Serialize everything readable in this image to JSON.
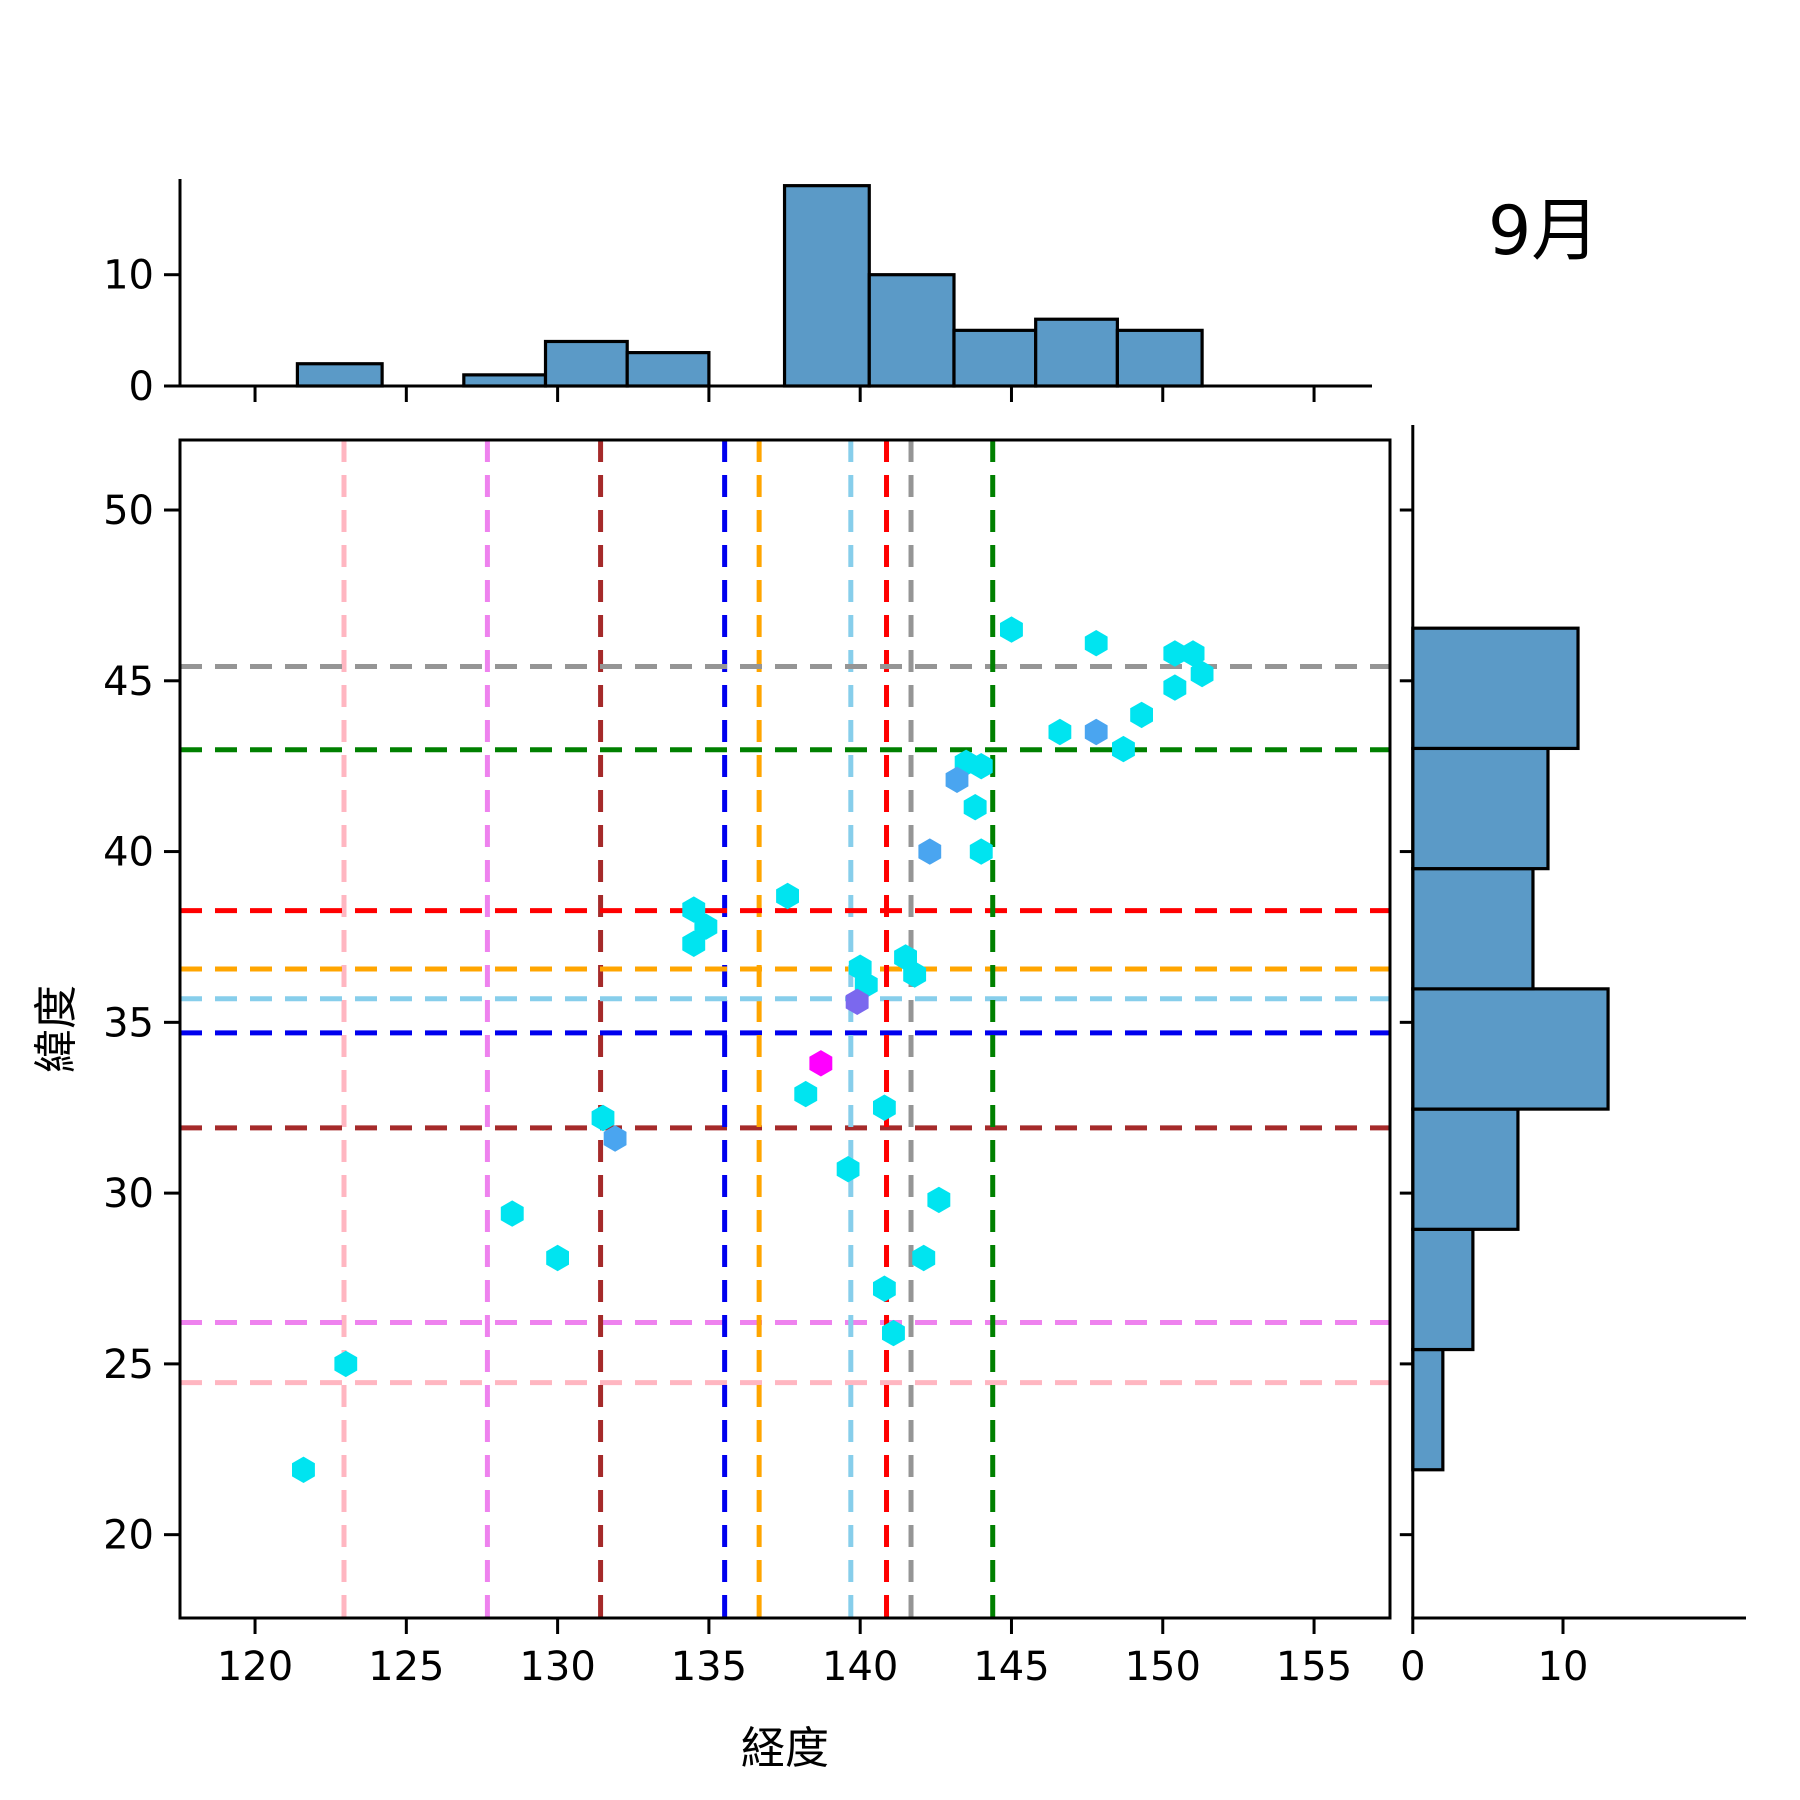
{
  "title": "9月",
  "axes": {
    "xlabel": "経度",
    "ylabel": "緯度",
    "x_ticks": [
      120,
      125,
      130,
      135,
      140,
      145,
      150,
      155
    ],
    "y_ticks": [
      20,
      25,
      30,
      35,
      40,
      45,
      50
    ],
    "xlim": [
      117.52,
      157.51
    ],
    "ylim": [
      17.56,
      52.05
    ],
    "marginal_count_ticks": [
      0,
      10
    ]
  },
  "chart_data": {
    "type": "scatter",
    "title": "9月",
    "xlabel": "経度",
    "ylabel": "緯度",
    "legend": "none",
    "grid": false,
    "series": [
      {
        "name": "cyan-points",
        "marker": "hexagon",
        "color": "#00E4F0",
        "points": [
          [
            121.6,
            21.9
          ],
          [
            123.0,
            25.0
          ],
          [
            128.5,
            29.4
          ],
          [
            130.0,
            28.1
          ],
          [
            131.5,
            32.2
          ],
          [
            134.5,
            38.3
          ],
          [
            134.9,
            37.8
          ],
          [
            134.5,
            37.3
          ],
          [
            137.6,
            38.7
          ],
          [
            138.2,
            32.9
          ],
          [
            139.6,
            30.7
          ],
          [
            140.0,
            36.6
          ],
          [
            140.2,
            36.1
          ],
          [
            140.8,
            32.5
          ],
          [
            140.8,
            27.2
          ],
          [
            141.1,
            25.9
          ],
          [
            141.5,
            36.9
          ],
          [
            141.8,
            36.4
          ],
          [
            142.1,
            28.1
          ],
          [
            142.6,
            29.8
          ],
          [
            143.5,
            42.6
          ],
          [
            144.0,
            42.5
          ],
          [
            143.8,
            41.3
          ],
          [
            144.0,
            40.0
          ],
          [
            145.0,
            46.5
          ],
          [
            146.6,
            43.5
          ],
          [
            147.8,
            46.1
          ],
          [
            148.7,
            43.0
          ],
          [
            149.3,
            44.0
          ],
          [
            150.4,
            45.8
          ],
          [
            151.0,
            45.8
          ],
          [
            150.4,
            44.8
          ],
          [
            151.3,
            45.2
          ]
        ]
      },
      {
        "name": "blue-points",
        "marker": "hexagon",
        "color": "#4AA5F0",
        "points": [
          [
            131.9,
            31.6
          ],
          [
            142.3,
            40.0
          ],
          [
            143.2,
            42.1
          ],
          [
            147.8,
            43.5
          ]
        ]
      },
      {
        "name": "purple-point",
        "marker": "hexagon",
        "color": "#7B68EE",
        "points": [
          [
            139.9,
            35.6
          ]
        ]
      },
      {
        "name": "magenta-point",
        "marker": "hexagon",
        "color": "#FF00FF",
        "points": [
          [
            138.7,
            33.8
          ]
        ]
      }
    ],
    "crosshairs": [
      {
        "name": "pink",
        "color": "#FFB6C1",
        "lon": 122.94,
        "lat": 24.45
      },
      {
        "name": "violet",
        "color": "#EE82EE",
        "lon": 127.68,
        "lat": 26.21
      },
      {
        "name": "dark-red",
        "color": "#A52A2A",
        "lon": 131.42,
        "lat": 31.91
      },
      {
        "name": "blue",
        "color": "#0000EE",
        "lon": 135.52,
        "lat": 34.69
      },
      {
        "name": "orange",
        "color": "#FFA500",
        "lon": 136.66,
        "lat": 36.56
      },
      {
        "name": "sky-blue",
        "color": "#87CEEB",
        "lon": 139.69,
        "lat": 35.69
      },
      {
        "name": "red",
        "color": "#FF0000",
        "lon": 140.87,
        "lat": 38.27
      },
      {
        "name": "gray",
        "color": "#959595",
        "lon": 141.68,
        "lat": 45.42
      },
      {
        "name": "green",
        "color": "#008000",
        "lon": 144.38,
        "lat": 42.98
      }
    ],
    "top_histogram": {
      "orientation": "vertical",
      "bar_color": "#5B9AC7",
      "edge_color": "#000000",
      "bin_edges": [
        121.4,
        124.2,
        126.9,
        129.6,
        132.3,
        135.0,
        137.5,
        140.3,
        143.1,
        145.8,
        148.5,
        151.3
      ],
      "counts": [
        2,
        0,
        1,
        4,
        3,
        0,
        18,
        10,
        5,
        6,
        5
      ],
      "ymax": 18.6
    },
    "right_histogram": {
      "orientation": "horizontal",
      "bar_color": "#5B9AC7",
      "edge_color": "#000000",
      "bin_edges": [
        21.9,
        25.42,
        28.94,
        32.46,
        35.98,
        39.5,
        43.02,
        46.54
      ],
      "counts": [
        2,
        4,
        7,
        13,
        8,
        9,
        11
      ],
      "xmax": 22.2
    }
  },
  "style": {
    "spine_color": "#000000",
    "tick_color": "#000000",
    "dash_width": 5,
    "marker_radius": 13.2
  }
}
